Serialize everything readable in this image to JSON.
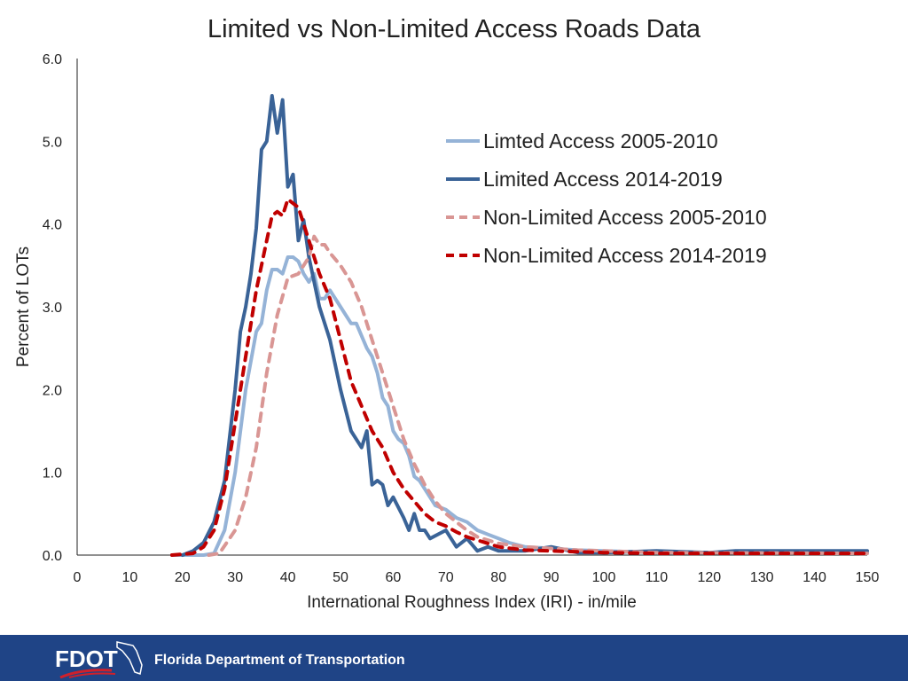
{
  "chart_data": {
    "type": "line",
    "title": "Limited vs Non-Limited Access Roads Data",
    "xlabel": "International Roughness Index (IRI) - in/mile",
    "ylabel": "Percent of LOTs",
    "xlim": [
      0,
      150
    ],
    "ylim": [
      0,
      6
    ],
    "xticks": [
      "0",
      "10",
      "20",
      "30",
      "40",
      "50",
      "60",
      "70",
      "80",
      "90",
      "100",
      "110",
      "120",
      "130",
      "140",
      "150"
    ],
    "yticks": [
      "0.0",
      "1.0",
      "2.0",
      "3.0",
      "4.0",
      "5.0",
      "6.0"
    ],
    "grid": false,
    "legend_position": "right",
    "series": [
      {
        "name": "Limted Access 2005-2010",
        "color": "#95b3d7",
        "dash": false,
        "x": [
          18,
          24,
          26,
          28,
          30,
          32,
          34,
          35,
          36,
          37,
          38,
          39,
          40,
          41,
          42,
          43,
          44,
          45,
          46,
          47,
          48,
          50,
          52,
          53,
          55,
          56,
          57,
          58,
          59,
          60,
          61,
          62,
          63,
          64,
          65,
          66,
          68,
          70,
          72,
          74,
          76,
          78,
          80,
          82,
          85,
          90,
          95,
          100,
          110,
          150
        ],
        "y": [
          0,
          0,
          0.02,
          0.3,
          1.0,
          2.0,
          2.7,
          2.8,
          3.2,
          3.45,
          3.45,
          3.4,
          3.6,
          3.6,
          3.55,
          3.4,
          3.3,
          3.4,
          3.1,
          3.1,
          3.2,
          3.0,
          2.8,
          2.8,
          2.5,
          2.4,
          2.2,
          1.9,
          1.8,
          1.5,
          1.4,
          1.35,
          1.2,
          0.95,
          0.9,
          0.8,
          0.6,
          0.55,
          0.45,
          0.4,
          0.3,
          0.25,
          0.2,
          0.15,
          0.1,
          0.08,
          0.06,
          0.05,
          0.03,
          0.03
        ]
      },
      {
        "name": "Limited Access 2014-2019",
        "color": "#3a6397",
        "dash": false,
        "x": [
          20,
          22,
          24,
          26,
          28,
          30,
          31,
          32,
          33,
          34,
          35,
          36,
          37,
          38,
          39,
          40,
          41,
          42,
          43,
          44,
          46,
          48,
          50,
          52,
          53,
          54,
          55,
          56,
          57,
          58,
          59,
          60,
          62,
          63,
          64,
          65,
          66,
          67,
          70,
          72,
          74,
          76,
          78,
          80,
          85,
          90,
          95,
          100,
          110,
          120,
          125,
          150
        ],
        "y": [
          0,
          0.05,
          0.15,
          0.4,
          0.9,
          2.0,
          2.7,
          3.0,
          3.4,
          3.95,
          4.9,
          5.0,
          5.55,
          5.1,
          5.5,
          4.45,
          4.6,
          3.8,
          4.05,
          3.6,
          3.0,
          2.6,
          2.0,
          1.5,
          1.4,
          1.3,
          1.5,
          0.85,
          0.9,
          0.85,
          0.6,
          0.7,
          0.45,
          0.3,
          0.5,
          0.3,
          0.3,
          0.2,
          0.3,
          0.1,
          0.2,
          0.05,
          0.1,
          0.05,
          0.05,
          0.1,
          0.03,
          0.03,
          0.05,
          0.03,
          0.05,
          0.05
        ]
      },
      {
        "name": "Non-Limited Access 2005-2010",
        "color": "#d99694",
        "dash": true,
        "x": [
          25,
          27,
          30,
          32,
          34,
          36,
          38,
          40,
          42,
          44,
          45,
          46,
          47,
          48,
          50,
          52,
          54,
          56,
          58,
          60,
          62,
          64,
          66,
          68,
          70,
          72,
          74,
          76,
          78,
          80,
          85,
          90,
          95,
          100,
          110,
          150
        ],
        "y": [
          0,
          0.02,
          0.3,
          0.7,
          1.3,
          2.2,
          2.9,
          3.35,
          3.4,
          3.6,
          3.85,
          3.75,
          3.75,
          3.65,
          3.5,
          3.3,
          3.0,
          2.6,
          2.2,
          1.8,
          1.4,
          1.1,
          0.85,
          0.65,
          0.5,
          0.4,
          0.3,
          0.22,
          0.18,
          0.14,
          0.1,
          0.08,
          0.06,
          0.05,
          0.03,
          0.02
        ]
      },
      {
        "name": "Non-Limited Access 2014-2019",
        "color": "#c00000",
        "dash": true,
        "x": [
          18,
          22,
          24,
          26,
          28,
          30,
          32,
          34,
          36,
          37,
          38,
          39,
          40,
          42,
          44,
          46,
          48,
          50,
          52,
          54,
          56,
          58,
          60,
          62,
          64,
          66,
          68,
          70,
          72,
          74,
          76,
          78,
          80,
          85,
          90,
          95,
          100,
          110,
          150
        ],
        "y": [
          0,
          0.02,
          0.1,
          0.3,
          0.8,
          1.6,
          2.4,
          3.2,
          3.8,
          4.1,
          4.15,
          4.1,
          4.3,
          4.2,
          3.8,
          3.4,
          3.1,
          2.6,
          2.1,
          1.8,
          1.5,
          1.3,
          1.0,
          0.8,
          0.65,
          0.5,
          0.4,
          0.35,
          0.28,
          0.22,
          0.18,
          0.14,
          0.1,
          0.06,
          0.05,
          0.04,
          0.03,
          0.02,
          0.02
        ]
      }
    ]
  },
  "footer": {
    "logo_text": "FDOT",
    "organization": "Florida Department of Transportation",
    "background": "#1f4486"
  }
}
